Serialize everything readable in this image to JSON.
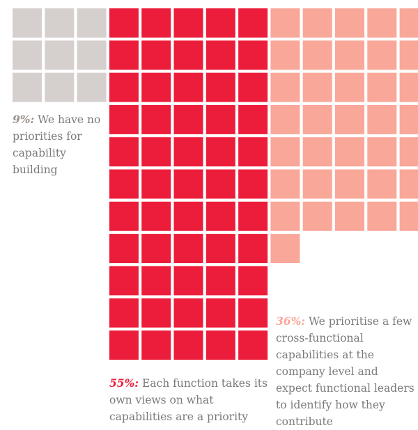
{
  "chart_data": {
    "type": "waffle",
    "title": "",
    "total_cells": 100,
    "segments": [
      {
        "name": "none",
        "percent": 9,
        "percent_text": "9%:",
        "description": " We have no priorities for capability building",
        "color": "#d5d0cd"
      },
      {
        "name": "function",
        "percent": 55,
        "percent_text": "55%:",
        "description": " Each function takes its own views on what capabilities are a priority",
        "color": "#ec1d3a"
      },
      {
        "name": "cross",
        "percent": 36,
        "percent_text": "36%:",
        "description": " We prioritise a few cross-functional capabilities at the company level and expect functional leaders to identify how they contribute",
        "color": "#f9a799"
      }
    ]
  }
}
